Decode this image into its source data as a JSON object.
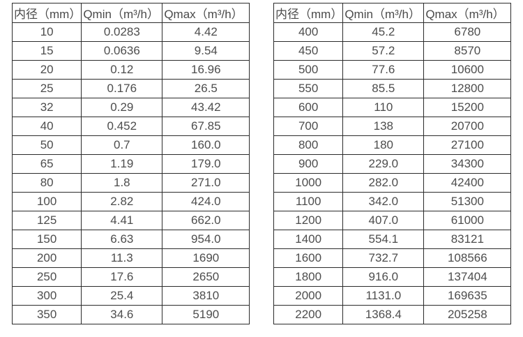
{
  "colors": {
    "text": "#4d4d4d",
    "border": "#2b2b2b",
    "background": "#ffffff"
  },
  "left_table": {
    "headers": [
      "内径（mm）",
      "Qmin（m³/h）",
      "Qmax（m³/h）"
    ],
    "rows": [
      [
        "10",
        "0.0283",
        "4.42"
      ],
      [
        "15",
        "0.0636",
        "9.54"
      ],
      [
        "20",
        "0.12",
        "16.96"
      ],
      [
        "25",
        "0.176",
        "26.5"
      ],
      [
        "32",
        "0.29",
        "43.42"
      ],
      [
        "40",
        "0.452",
        "67.85"
      ],
      [
        "50",
        "0.7",
        "160.0"
      ],
      [
        "65",
        "1.19",
        "179.0"
      ],
      [
        "80",
        "1.8",
        "271.0"
      ],
      [
        "100",
        "2.82",
        "424.0"
      ],
      [
        "125",
        "4.41",
        "662.0"
      ],
      [
        "150",
        "6.63",
        "954.0"
      ],
      [
        "200",
        "11.3",
        "1690"
      ],
      [
        "250",
        "17.6",
        "2650"
      ],
      [
        "300",
        "25.4",
        "3810"
      ],
      [
        "350",
        "34.6",
        "5190"
      ]
    ]
  },
  "right_table": {
    "headers": [
      "内径（mm）",
      "Qmin（m³/h）",
      "Qmax（m³/h）"
    ],
    "rows": [
      [
        "400",
        "45.2",
        "6780"
      ],
      [
        "450",
        "57.2",
        "8570"
      ],
      [
        "500",
        "77.6",
        "10600"
      ],
      [
        "550",
        "85.5",
        "12800"
      ],
      [
        "600",
        "110",
        "15200"
      ],
      [
        "700",
        "138",
        "20700"
      ],
      [
        "800",
        "180",
        "27100"
      ],
      [
        "900",
        "229.0",
        "34300"
      ],
      [
        "1000",
        "282.0",
        "42400"
      ],
      [
        "1100",
        "342.0",
        "51300"
      ],
      [
        "1200",
        "407.0",
        "61000"
      ],
      [
        "1400",
        "554.1",
        "83121"
      ],
      [
        "1600",
        "732.7",
        "108566"
      ],
      [
        "1800",
        "916.0",
        "137404"
      ],
      [
        "2000",
        "1131.0",
        "169635"
      ],
      [
        "2200",
        "1368.4",
        "205258"
      ]
    ]
  }
}
